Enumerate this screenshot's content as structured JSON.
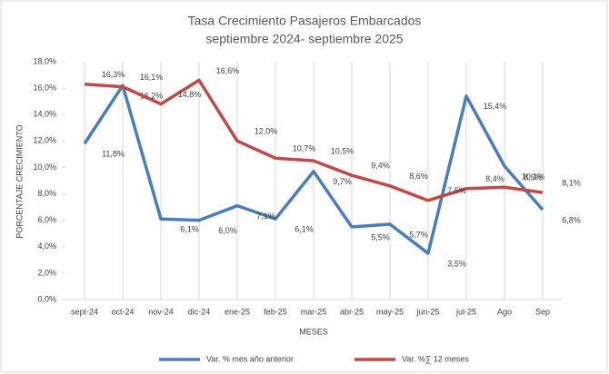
{
  "chart_data": {
    "type": "line",
    "title": [
      "Tasa Crecimiento Pasajeros Embarcados",
      "septiembre 2024- septiembre 2025"
    ],
    "x_label": "MESES",
    "y_label": "PORCENTAJE CRECIMIENTO",
    "categories": [
      "sept-24",
      "oct-24",
      "nov-24",
      "dic-24",
      "ene-25",
      "feb-25",
      "mar-25",
      "abr-25",
      "may-25",
      "jun-25",
      "jul-25",
      "Ago",
      "Sep"
    ],
    "series": [
      {
        "name": "Var. % mes año anterior",
        "color": "#4a7ebb",
        "values": [
          11.8,
          16.2,
          6.1,
          6.0,
          7.1,
          6.1,
          9.7,
          5.5,
          5.7,
          3.5,
          15.4,
          10.1,
          6.8
        ],
        "value_labels": [
          "11,8%",
          "16,2%",
          "6,1%",
          "6,0%",
          "7,1%",
          "6,1%",
          "9,7%",
          "5,5%",
          "5,7%",
          "3,5%",
          "15,4%",
          "10,1%",
          "6,8%"
        ]
      },
      {
        "name": "Var. %∑ 12 meses",
        "color": "#be4b48",
        "values": [
          16.3,
          16.1,
          14.8,
          16.6,
          12.0,
          10.7,
          10.5,
          9.4,
          8.6,
          7.5,
          8.4,
          8.5,
          8.1
        ],
        "value_labels": [
          "16,3%",
          "16,1%",
          "14,8%",
          "16,6%",
          "12,0%",
          "10,7%",
          "10,5%",
          "9,4%",
          "8,6%",
          "7,5%",
          "8,4%",
          "8,5%",
          "8,1%"
        ]
      }
    ],
    "ylim": [
      0,
      18
    ],
    "yticks": [
      {
        "value": 0,
        "label": "0,0%"
      },
      {
        "value": 2,
        "label": "2,0%"
      },
      {
        "value": 4,
        "label": "4,0%"
      },
      {
        "value": 6,
        "label": "6,0%"
      },
      {
        "value": 8,
        "label": "8,0%"
      },
      {
        "value": 10,
        "label": "10,0%"
      },
      {
        "value": 12,
        "label": "12,0%"
      },
      {
        "value": 14,
        "label": "14,0%"
      },
      {
        "value": 16,
        "label": "16,0%"
      },
      {
        "value": 18,
        "label": "18,0%"
      }
    ],
    "xgrid": true,
    "legend": "bottom"
  }
}
